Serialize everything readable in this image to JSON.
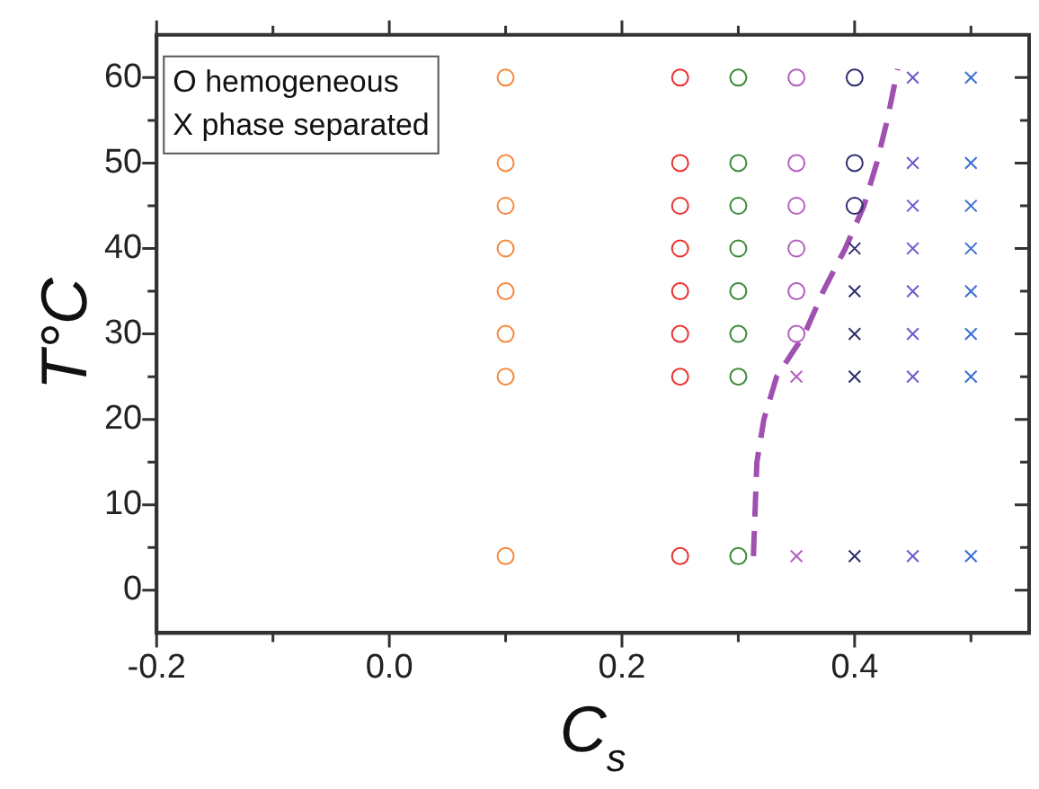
{
  "chart_data": {
    "type": "scatter",
    "xlabel": "C$_{s}$",
    "ylabel": "T°C",
    "xlim": [
      -0.2,
      0.55
    ],
    "ylim": [
      -5,
      65
    ],
    "xticks": [
      {
        "value": -0.2,
        "label": "-0.2"
      },
      {
        "value": -0.1,
        "label": null
      },
      {
        "value": 0,
        "label": "0.0"
      },
      {
        "value": 0.1,
        "label": null
      },
      {
        "value": 0.2,
        "label": "0.2"
      },
      {
        "value": 0.3,
        "label": null
      },
      {
        "value": 0.4,
        "label": "0.4"
      },
      {
        "value": 0.5,
        "label": null
      }
    ],
    "yticks": [
      0,
      {
        "value": 5,
        "label": null
      },
      10,
      {
        "value": 15,
        "label": null
      },
      20,
      {
        "value": 25,
        "label": null
      },
      30,
      {
        "value": 35,
        "label": null
      },
      40,
      {
        "value": 45,
        "label": null
      },
      50,
      {
        "value": 55,
        "label": null
      },
      60
    ],
    "grid": false,
    "legend": false,
    "annotations": [
      "O hemogeneous",
      "X phase separated"
    ],
    "series": [
      {
        "type": "scatter",
        "marker": "circle",
        "color": "#f7883c",
        "x": [
          0.1,
          0.1,
          0.1,
          0.1,
          0.1,
          0.1,
          0.1,
          0.1
        ],
        "values": [
          4,
          25,
          30,
          35,
          40,
          45,
          50,
          60
        ]
      },
      {
        "type": "scatter",
        "marker": "circle",
        "color": "#e8302f",
        "x": [
          0.25,
          0.25,
          0.25,
          0.25,
          0.25,
          0.25,
          0.25,
          0.25
        ],
        "values": [
          4,
          25,
          30,
          35,
          40,
          45,
          50,
          60
        ]
      },
      {
        "type": "scatter",
        "marker": "circle",
        "color": "#3a8a3a",
        "x": [
          0.3,
          0.3,
          0.3,
          0.3,
          0.3,
          0.3,
          0.3,
          0.3
        ],
        "values": [
          4,
          25,
          30,
          35,
          40,
          45,
          50,
          60
        ]
      },
      {
        "type": "scatter",
        "marker": "circle",
        "color": "#b45fc0",
        "x": [
          0.35,
          0.35,
          0.35,
          0.35,
          0.35,
          0.35
        ],
        "values": [
          30,
          35,
          40,
          45,
          50,
          60
        ]
      },
      {
        "type": "scatter",
        "marker": "cross",
        "color": "#b45fc0",
        "x": [
          0.35,
          0.35
        ],
        "values": [
          4,
          25
        ]
      },
      {
        "type": "scatter",
        "marker": "circle",
        "color": "#2e2e6e",
        "x": [
          0.4,
          0.4,
          0.4
        ],
        "values": [
          45,
          50,
          60
        ]
      },
      {
        "type": "scatter",
        "marker": "cross",
        "color": "#2e2e6e",
        "x": [
          0.4,
          0.4,
          0.4,
          0.4,
          0.4
        ],
        "values": [
          4,
          25,
          30,
          35,
          40
        ]
      },
      {
        "type": "scatter",
        "marker": "cross",
        "color": "#6a5acd",
        "x": [
          0.45,
          0.45,
          0.45,
          0.45,
          0.45,
          0.45,
          0.45,
          0.45
        ],
        "values": [
          4,
          25,
          30,
          35,
          40,
          45,
          50,
          60
        ]
      },
      {
        "type": "scatter",
        "marker": "cross",
        "color": "#3a6fd0",
        "x": [
          0.5,
          0.5,
          0.5,
          0.5,
          0.5,
          0.5,
          0.5,
          0.5
        ],
        "values": [
          4,
          25,
          30,
          35,
          40,
          45,
          50,
          60
        ]
      },
      {
        "type": "line",
        "marker": "none",
        "line_style": "dashed",
        "color": "#a050b0",
        "x": [
          0.313,
          0.316,
          0.322,
          0.333,
          0.357,
          0.373,
          0.392,
          0.408,
          0.419,
          0.428,
          0.437
        ],
        "values": [
          4,
          15,
          20,
          25,
          30,
          35,
          40,
          45,
          50,
          55,
          61
        ]
      }
    ]
  }
}
